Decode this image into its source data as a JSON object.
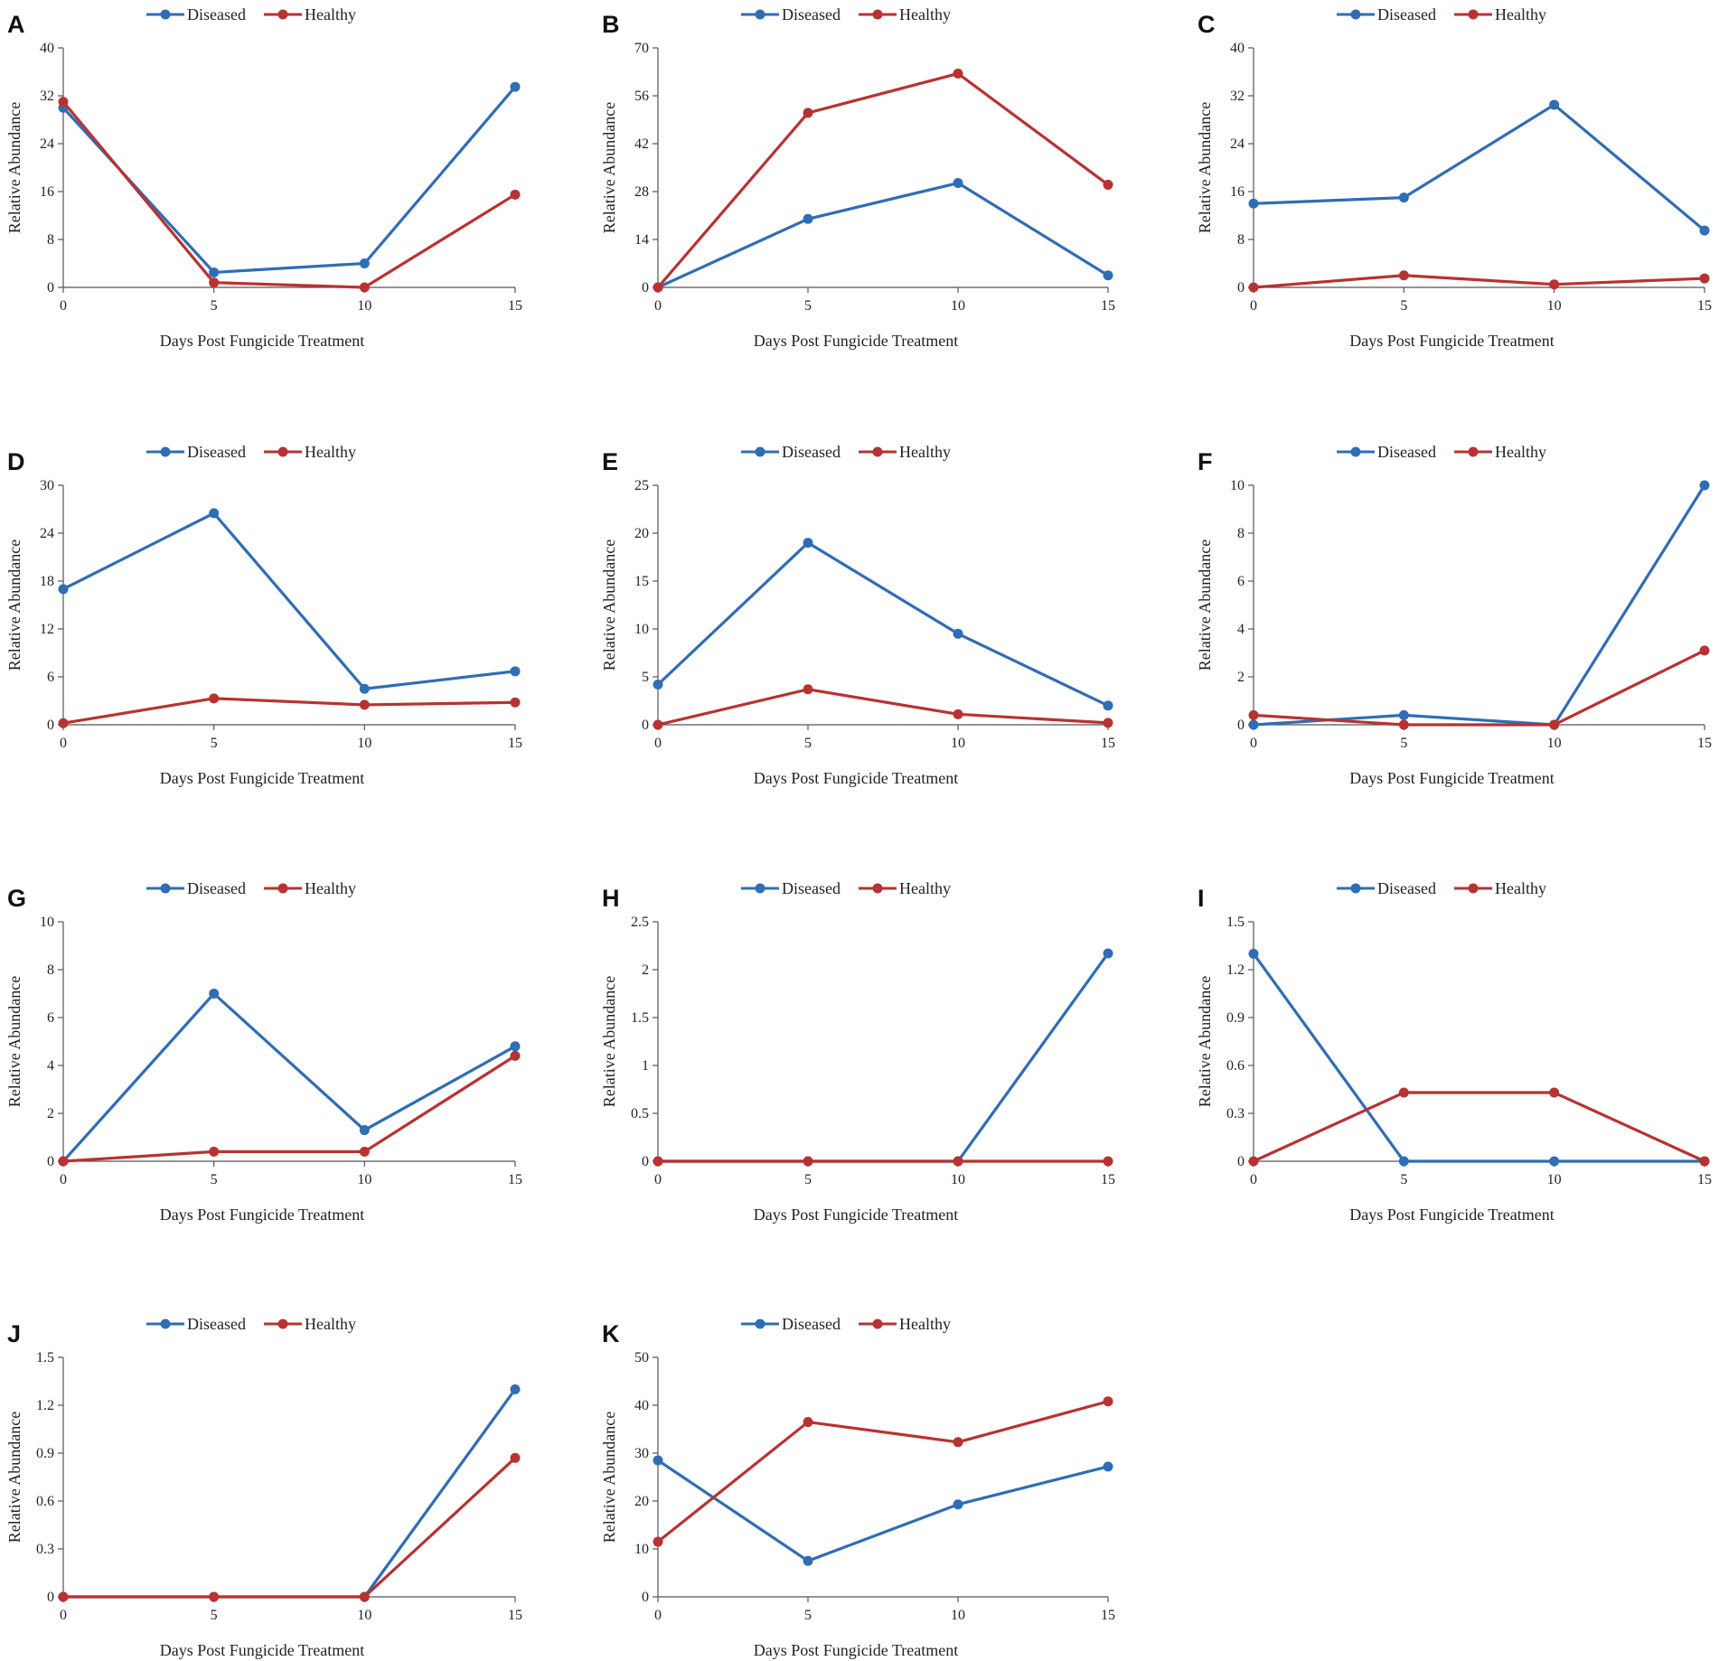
{
  "figure": {
    "colors": {
      "diseased": "#2f6db5",
      "healthy": "#b83232",
      "axis": "#555555"
    },
    "legend": [
      "Diseased",
      "Healthy"
    ],
    "xlabel": "Days Post Fungicide Treatment",
    "ylabel": "Relative Abundance"
  },
  "chart_data": [
    {
      "panel": "A",
      "type": "line",
      "categories": [
        0,
        5,
        10,
        15
      ],
      "ylim": [
        0,
        40
      ],
      "yticks": [
        "0",
        "8",
        "16",
        "24",
        "32",
        "40"
      ],
      "series": [
        {
          "name": "Diseased",
          "values": [
            30,
            2.5,
            4,
            33.5
          ]
        },
        {
          "name": "Healthy",
          "values": [
            31,
            0.8,
            0,
            15.5
          ]
        }
      ]
    },
    {
      "panel": "B",
      "type": "line",
      "categories": [
        0,
        5,
        10,
        15
      ],
      "ylim": [
        0,
        70
      ],
      "yticks": [
        "0",
        "14",
        "28",
        "42",
        "56",
        "70"
      ],
      "series": [
        {
          "name": "Diseased",
          "values": [
            0,
            20,
            30.5,
            3.5
          ]
        },
        {
          "name": "Healthy",
          "values": [
            0,
            51,
            62.5,
            30
          ]
        }
      ]
    },
    {
      "panel": "C",
      "type": "line",
      "categories": [
        0,
        5,
        10,
        15
      ],
      "ylim": [
        0,
        40
      ],
      "yticks": [
        "0",
        "8",
        "16",
        "24",
        "32",
        "40"
      ],
      "series": [
        {
          "name": "Diseased",
          "values": [
            14,
            15,
            30.5,
            9.5
          ]
        },
        {
          "name": "Healthy",
          "values": [
            0,
            2,
            0.5,
            1.5
          ]
        }
      ]
    },
    {
      "panel": "D",
      "type": "line",
      "categories": [
        0,
        5,
        10,
        15
      ],
      "ylim": [
        0,
        30
      ],
      "yticks": [
        "0",
        "6",
        "12",
        "18",
        "24",
        "30"
      ],
      "series": [
        {
          "name": "Diseased",
          "values": [
            17,
            26.5,
            4.5,
            6.7
          ]
        },
        {
          "name": "Healthy",
          "values": [
            0.2,
            3.3,
            2.5,
            2.8
          ]
        }
      ]
    },
    {
      "panel": "E",
      "type": "line",
      "categories": [
        0,
        5,
        10,
        15
      ],
      "ylim": [
        0,
        25
      ],
      "yticks": [
        "0",
        "5",
        "10",
        "15",
        "20",
        "25"
      ],
      "series": [
        {
          "name": "Diseased",
          "values": [
            4.2,
            19,
            9.5,
            2
          ]
        },
        {
          "name": "Healthy",
          "values": [
            0,
            3.7,
            1.1,
            0.2
          ]
        }
      ]
    },
    {
      "panel": "F",
      "type": "line",
      "categories": [
        0,
        5,
        10,
        15
      ],
      "ylim": [
        0,
        10
      ],
      "yticks": [
        "0",
        "2",
        "4",
        "6",
        "8",
        "10"
      ],
      "series": [
        {
          "name": "Diseased",
          "values": [
            0,
            0.4,
            0,
            10
          ]
        },
        {
          "name": "Healthy",
          "values": [
            0.4,
            0,
            0,
            3.1
          ]
        }
      ]
    },
    {
      "panel": "G",
      "type": "line",
      "categories": [
        0,
        5,
        10,
        15
      ],
      "ylim": [
        0,
        10
      ],
      "yticks": [
        "0",
        "2",
        "4",
        "6",
        "8",
        "10"
      ],
      "series": [
        {
          "name": "Diseased",
          "values": [
            0,
            7,
            1.3,
            4.8
          ]
        },
        {
          "name": "Healthy",
          "values": [
            0,
            0.4,
            0.4,
            4.4
          ]
        }
      ]
    },
    {
      "panel": "H",
      "type": "line",
      "categories": [
        0,
        5,
        10,
        15
      ],
      "ylim": [
        0,
        2.5
      ],
      "yticks": [
        "0",
        "0.5",
        "1",
        "1.5",
        "2",
        "2.5"
      ],
      "series": [
        {
          "name": "Diseased",
          "values": [
            0,
            0,
            0,
            2.17
          ]
        },
        {
          "name": "Healthy",
          "values": [
            0,
            0,
            0,
            0
          ]
        }
      ]
    },
    {
      "panel": "I",
      "type": "line",
      "categories": [
        0,
        5,
        10,
        15
      ],
      "ylim": [
        0,
        1.5
      ],
      "yticks": [
        "0",
        "0.3",
        "0.6",
        "0.9",
        "1.2",
        "1.5"
      ],
      "series": [
        {
          "name": "Diseased",
          "values": [
            1.3,
            0,
            0,
            0
          ]
        },
        {
          "name": "Healthy",
          "values": [
            0,
            0.43,
            0.43,
            0
          ]
        }
      ]
    },
    {
      "panel": "J",
      "type": "line",
      "categories": [
        0,
        5,
        10,
        15
      ],
      "ylim": [
        0,
        1.5
      ],
      "yticks": [
        "0",
        "0.3",
        "0.6",
        "0.9",
        "1.2",
        "1.5"
      ],
      "series": [
        {
          "name": "Diseased",
          "values": [
            0,
            0,
            0,
            1.3
          ]
        },
        {
          "name": "Healthy",
          "values": [
            0,
            0,
            0,
            0.87
          ]
        }
      ]
    },
    {
      "panel": "K",
      "type": "line",
      "categories": [
        0,
        5,
        10,
        15
      ],
      "ylim": [
        0,
        50
      ],
      "yticks": [
        "0",
        "10",
        "20",
        "30",
        "40",
        "50"
      ],
      "series": [
        {
          "name": "Diseased",
          "values": [
            28.5,
            7.5,
            19.3,
            27.2
          ]
        },
        {
          "name": "Healthy",
          "values": [
            11.5,
            36.5,
            32.3,
            40.8
          ]
        }
      ]
    }
  ]
}
